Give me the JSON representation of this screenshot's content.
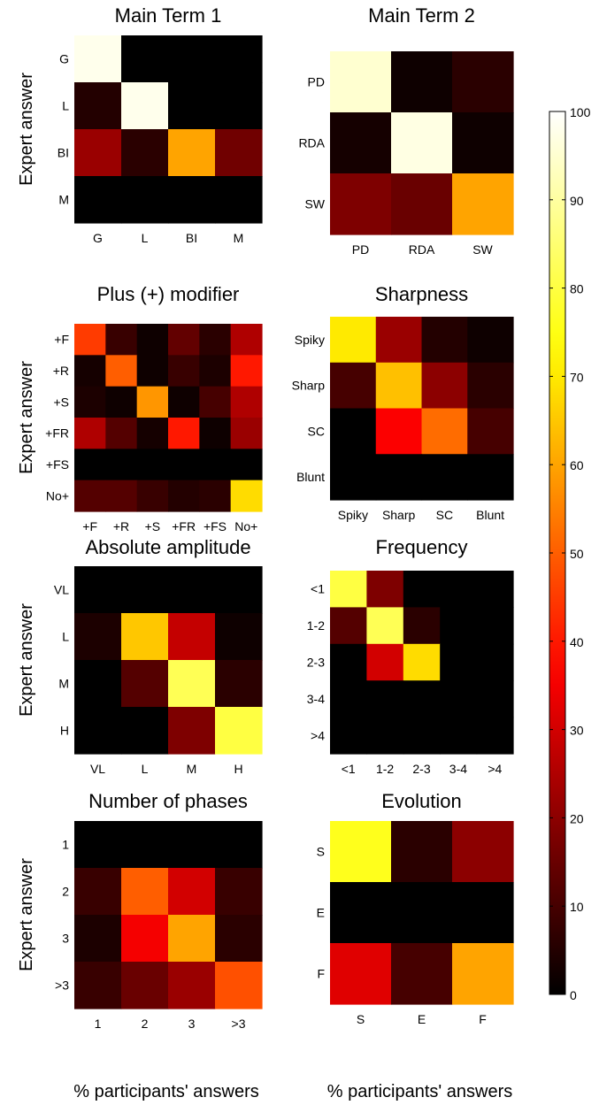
{
  "figure": {
    "xlabel": "% participants' answers",
    "ylabel": "Expert answer"
  },
  "chart_data": [
    {
      "type": "heatmap",
      "title": "Main Term 1",
      "xlabel": "",
      "ylabel": "Expert answer",
      "x_categories": [
        "G",
        "L",
        "BI",
        "M"
      ],
      "y_categories": [
        "G",
        "L",
        "BI",
        "M"
      ],
      "values": [
        [
          98,
          0,
          0,
          0
        ],
        [
          5,
          98,
          0,
          0
        ],
        [
          22,
          6,
          60,
          16
        ],
        [
          0,
          0,
          0,
          0
        ]
      ],
      "zlim": [
        0,
        100
      ]
    },
    {
      "type": "heatmap",
      "title": "Main Term 2",
      "xlabel": "",
      "ylabel": "",
      "x_categories": [
        "PD",
        "RDA",
        "SW"
      ],
      "y_categories": [
        "PD",
        "RDA",
        "SW"
      ],
      "values": [
        [
          95,
          2,
          6
        ],
        [
          3,
          97,
          2
        ],
        [
          18,
          15,
          60
        ]
      ],
      "zlim": [
        0,
        100
      ]
    },
    {
      "type": "heatmap",
      "title": "Plus (+) modifier",
      "xlabel": "",
      "ylabel": "Expert answer",
      "x_categories": [
        "+F",
        "+R",
        "+S",
        "+FR",
        "+FS",
        "No+"
      ],
      "y_categories": [
        "+F",
        "+R",
        "+S",
        "+FR",
        "+FS",
        "No+"
      ],
      "values": [
        [
          45,
          8,
          2,
          14,
          6,
          25
        ],
        [
          3,
          50,
          2,
          8,
          4,
          40
        ],
        [
          4,
          2,
          58,
          2,
          10,
          25
        ],
        [
          25,
          12,
          3,
          40,
          2,
          22
        ],
        [
          0,
          0,
          0,
          0,
          0,
          0
        ],
        [
          12,
          12,
          8,
          5,
          6,
          68
        ]
      ],
      "zlim": [
        0,
        100
      ]
    },
    {
      "type": "heatmap",
      "title": "Sharpness",
      "xlabel": "",
      "ylabel": "",
      "x_categories": [
        "Spiky",
        "Sharp",
        "SC",
        "Blunt"
      ],
      "y_categories": [
        "Spiky",
        "Sharp",
        "SC",
        "Blunt"
      ],
      "values": [
        [
          70,
          22,
          5,
          2
        ],
        [
          10,
          64,
          20,
          6
        ],
        [
          0,
          36,
          52,
          10
        ],
        [
          0,
          0,
          0,
          0
        ]
      ],
      "zlim": [
        0,
        100
      ]
    },
    {
      "type": "heatmap",
      "title": "Absolute amplitude",
      "xlabel": "",
      "ylabel": "Expert answer",
      "x_categories": [
        "VL",
        "L",
        "M",
        "H"
      ],
      "y_categories": [
        "VL",
        "L",
        "M",
        "H"
      ],
      "values": [
        [
          0,
          0,
          0,
          0
        ],
        [
          4,
          65,
          28,
          2
        ],
        [
          0,
          12,
          82,
          6
        ],
        [
          0,
          0,
          18,
          80
        ]
      ],
      "zlim": [
        0,
        100
      ]
    },
    {
      "type": "heatmap",
      "title": "Frequency",
      "xlabel": "",
      "ylabel": "",
      "x_categories": [
        "<1",
        "1-2",
        "2-3",
        "3-4",
        ">4"
      ],
      "y_categories": [
        "<1",
        "1-2",
        "2-3",
        "3-4",
        ">4"
      ],
      "values": [
        [
          80,
          18,
          0,
          0,
          0
        ],
        [
          12,
          82,
          6,
          0,
          0
        ],
        [
          0,
          30,
          68,
          0,
          0
        ],
        [
          0,
          0,
          0,
          0,
          0
        ],
        [
          0,
          0,
          0,
          0,
          0
        ]
      ],
      "zlim": [
        0,
        100
      ]
    },
    {
      "type": "heatmap",
      "title": "Number of phases",
      "xlabel": "% participants' answers",
      "ylabel": "Expert answer",
      "x_categories": [
        "1",
        "2",
        "3",
        ">3"
      ],
      "y_categories": [
        "1",
        "2",
        "3",
        ">3"
      ],
      "values": [
        [
          0,
          0,
          0,
          0
        ],
        [
          8,
          50,
          30,
          8
        ],
        [
          4,
          35,
          60,
          6
        ],
        [
          8,
          15,
          22,
          48
        ]
      ],
      "zlim": [
        0,
        100
      ]
    },
    {
      "type": "heatmap",
      "title": "Evolution",
      "xlabel": "% participants' answers",
      "ylabel": "",
      "x_categories": [
        "S",
        "E",
        "F"
      ],
      "y_categories": [
        "S",
        "E",
        "F"
      ],
      "values": [
        [
          76,
          6,
          20
        ],
        [
          0,
          0,
          0
        ],
        [
          32,
          10,
          60
        ]
      ],
      "zlim": [
        0,
        100
      ]
    }
  ],
  "colorbar": {
    "colormap": "hot",
    "ticks": [
      "0",
      "10",
      "20",
      "30",
      "40",
      "50",
      "60",
      "70",
      "80",
      "90",
      "100"
    ],
    "range": [
      0,
      100
    ]
  }
}
